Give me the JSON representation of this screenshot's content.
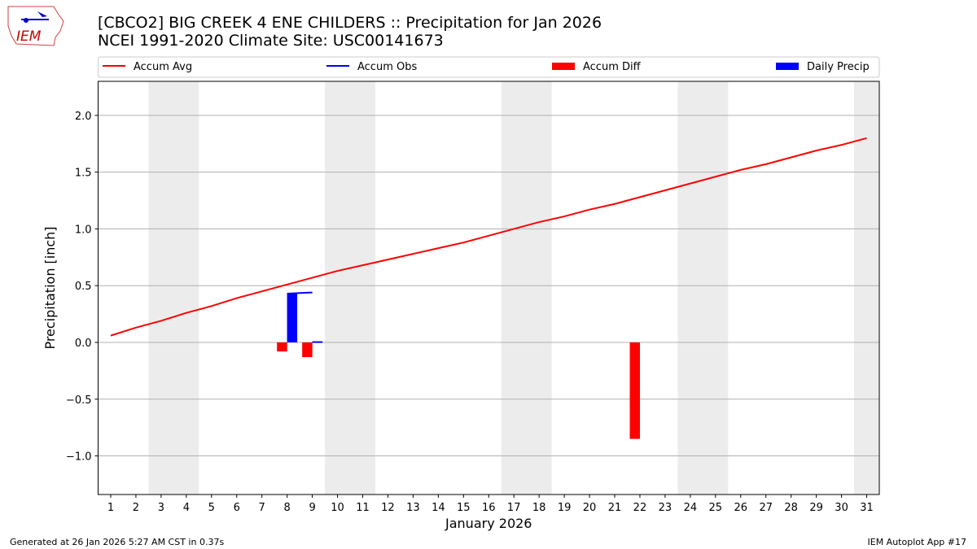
{
  "header": {
    "title": "[CBCO2] BIG CREEK 4 ENE CHILDERS :: Precipitation for Jan 2026",
    "subtitle": "NCEI 1991-2020 Climate Site: USC00141673"
  },
  "logo": {
    "text": "IEM"
  },
  "footer": {
    "left": "Generated at 26 Jan 2026 5:27 AM CST in 0.37s",
    "right": "IEM Autoplot App #17"
  },
  "chart_data": {
    "type": "line",
    "xlabel": "January 2026",
    "ylabel": "Precipitation [inch]",
    "xlim": [
      0.5,
      31.5
    ],
    "ylim": [
      -1.34,
      2.3
    ],
    "grid": "horizontal",
    "legend_placement": "top",
    "x_ticks": [
      1,
      2,
      3,
      4,
      5,
      6,
      7,
      8,
      9,
      10,
      11,
      12,
      13,
      14,
      15,
      16,
      17,
      18,
      19,
      20,
      21,
      22,
      23,
      24,
      25,
      26,
      27,
      28,
      29,
      30,
      31
    ],
    "y_ticks": [
      "−1.0",
      "−0.5",
      "0.0",
      "0.5",
      "1.0",
      "1.5",
      "2.0"
    ],
    "y_tick_values": [
      -1.0,
      -0.5,
      0.0,
      0.5,
      1.0,
      1.5,
      2.0
    ],
    "weekend_shading": [
      [
        2.5,
        4.5
      ],
      [
        9.5,
        11.5
      ],
      [
        16.5,
        18.5
      ],
      [
        23.5,
        25.5
      ],
      [
        30.5,
        31.5
      ]
    ],
    "colors": {
      "avg": "#ff0000",
      "obs": "#0000ff",
      "diff": "#ff0000",
      "daily": "#0000ff",
      "shade": "#ececec"
    },
    "series": [
      {
        "name": "Accum Avg",
        "kind": "line",
        "x": [
          1,
          2,
          3,
          4,
          5,
          6,
          7,
          8,
          9,
          10,
          11,
          12,
          13,
          14,
          15,
          16,
          17,
          18,
          19,
          20,
          21,
          22,
          23,
          24,
          25,
          26,
          27,
          28,
          29,
          30,
          31
        ],
        "values": [
          0.06,
          0.13,
          0.19,
          0.26,
          0.32,
          0.39,
          0.45,
          0.51,
          0.57,
          0.63,
          0.68,
          0.73,
          0.78,
          0.83,
          0.88,
          0.94,
          1.0,
          1.06,
          1.11,
          1.17,
          1.22,
          1.28,
          1.34,
          1.4,
          1.46,
          1.52,
          1.57,
          1.63,
          1.69,
          1.74,
          1.8
        ]
      },
      {
        "name": "Accum Obs",
        "kind": "line",
        "x": [
          8,
          9
        ],
        "values": [
          0.43,
          0.44
        ]
      },
      {
        "name": "Accum Diff",
        "kind": "bar",
        "x": [
          8,
          9,
          22
        ],
        "values": [
          -0.08,
          -0.13,
          -0.85
        ]
      },
      {
        "name": "Daily Precip",
        "kind": "bar",
        "x": [
          8,
          9
        ],
        "values": [
          0.43,
          0.01
        ]
      }
    ]
  }
}
